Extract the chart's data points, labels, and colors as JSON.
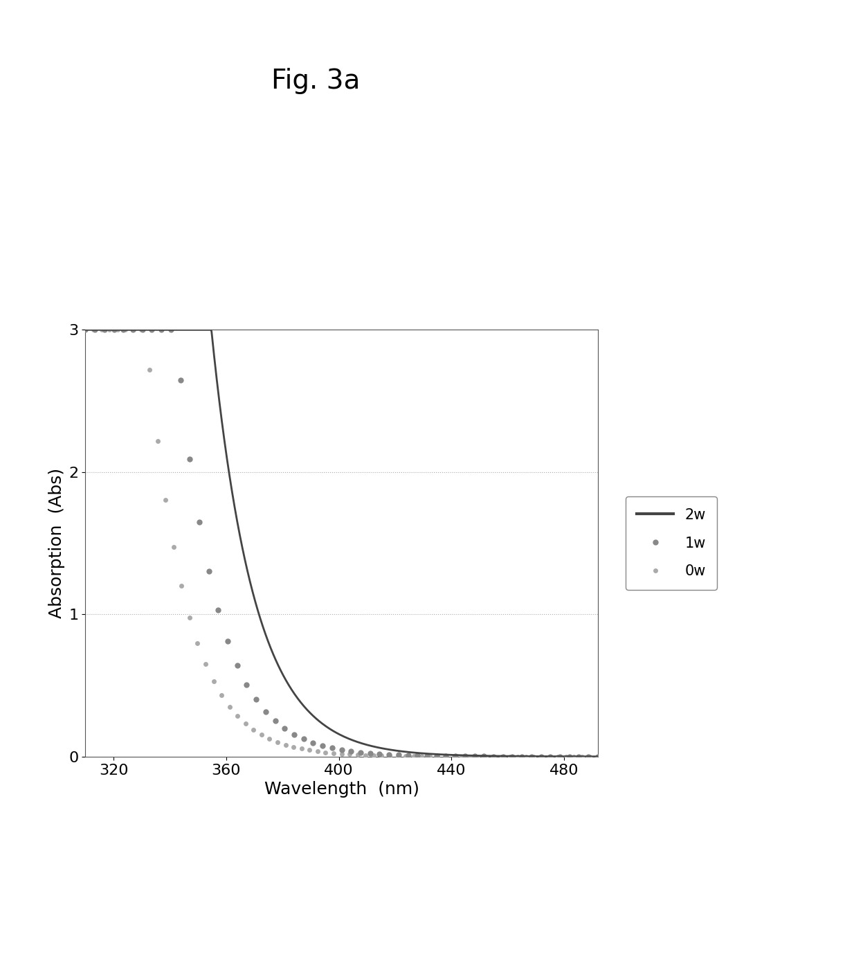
{
  "title": "Fig. 3a",
  "xlabel": "Wavelength  (nm)",
  "ylabel": "Absorption  (Abs)",
  "xlim": [
    310,
    492
  ],
  "ylim": [
    0,
    3.0
  ],
  "yticks": [
    0,
    1,
    2,
    3
  ],
  "xticks": [
    320,
    360,
    400,
    440,
    480
  ],
  "background_color": "#ffffff",
  "grid_color": "#aaaaaa",
  "series_2w": {
    "label": "2w",
    "color": "#444444",
    "linewidth": 2.0,
    "a": 55.0,
    "b": 0.065
  },
  "series_1w": {
    "label": "1w",
    "color": "#888888",
    "markersize": 6,
    "a": 28.0,
    "b": 0.07,
    "n_points": 55
  },
  "series_0w": {
    "label": "0w",
    "color": "#aaaaaa",
    "markersize": 5,
    "a": 14.0,
    "b": 0.072,
    "n_points": 65
  },
  "title_fontsize": 28,
  "axis_label_fontsize": 18,
  "tick_fontsize": 16,
  "legend_fontsize": 15
}
